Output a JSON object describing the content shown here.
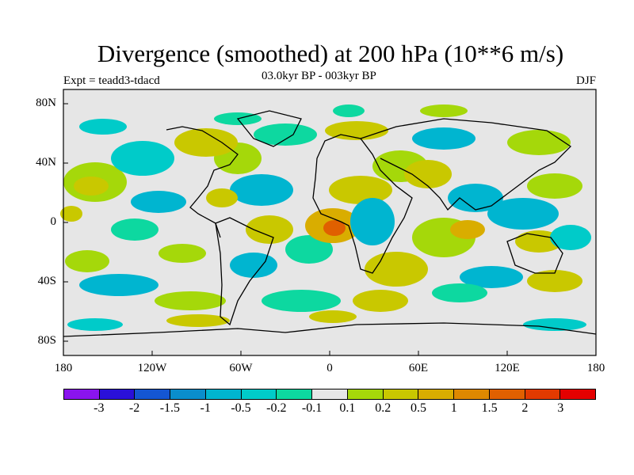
{
  "header": {
    "title": "Divergence (smoothed) at 200 hPa (10**6 m/s)",
    "subtitle": "03.0kyr BP - 003kyr BP",
    "experiment": "Expt = teadd3-tdacd",
    "season": "DJF"
  },
  "axes": {
    "lat_ticks": [
      "80N",
      "40N",
      "0",
      "40S",
      "80S"
    ],
    "lon_ticks": [
      "180",
      "120W",
      "60W",
      "0",
      "60E",
      "120E",
      "180"
    ]
  },
  "legend": {
    "labels": [
      "-3",
      "-2",
      "-1.5",
      "-1",
      "-0.5",
      "-0.2",
      "-0.1",
      "0.1",
      "0.2",
      "0.5",
      "1",
      "1.5",
      "2",
      "3"
    ],
    "colors": [
      "#8a14ee",
      "#2a10d9",
      "#1456d2",
      "#0a8ecc",
      "#00b5d0",
      "#00cbc9",
      "#0dd8a0",
      "#e6e6e6",
      "#a5d80a",
      "#c9c800",
      "#d9ad00",
      "#de8800",
      "#e06000",
      "#e23a00",
      "#e40000"
    ]
  },
  "map": {
    "ocean_color": "#e6e6e6",
    "coast_color": "#000000"
  }
}
